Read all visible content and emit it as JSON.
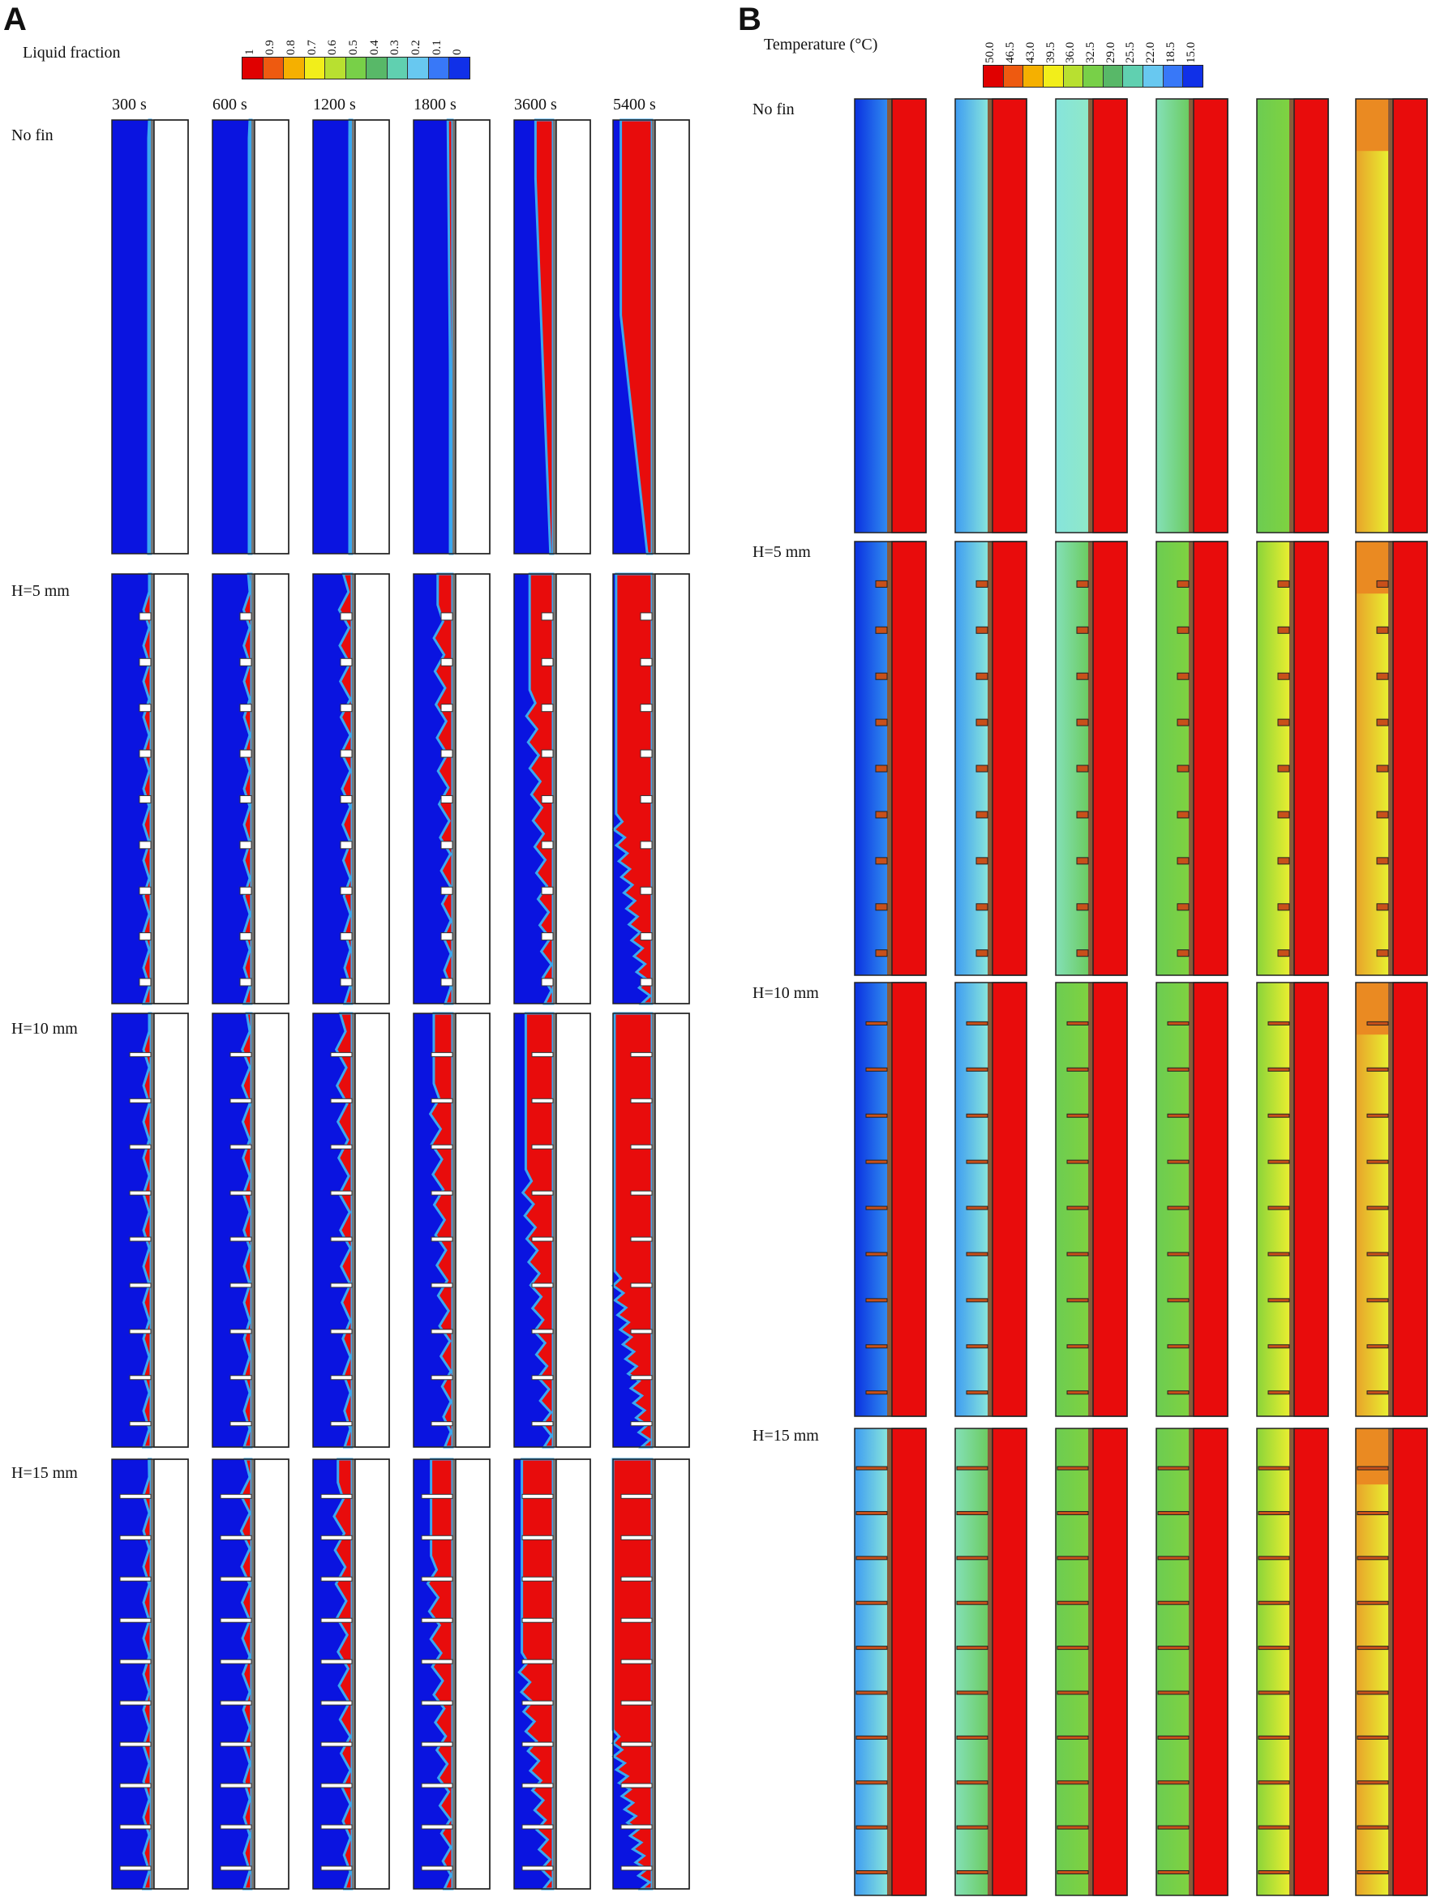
{
  "panel_a": {
    "letter": "A",
    "colorbar": {
      "title": "Liquid fraction",
      "ticks": [
        "1",
        "0.9",
        "0.8",
        "0.7",
        "0.6",
        "0.5",
        "0.4",
        "0.3",
        "0.2",
        "0.1",
        "0"
      ],
      "colors": [
        "#e00000",
        "#ee5a10",
        "#f5b000",
        "#f2ee1a",
        "#b8e030",
        "#78d048",
        "#58b868",
        "#60d0b0",
        "#68c8f0",
        "#3878f8",
        "#1030e8"
      ]
    },
    "time_labels": [
      "300 s",
      "600 s",
      "1200 s",
      "1800 s",
      "3600 s",
      "5400 s"
    ],
    "row_labels": [
      "No fin",
      "H=5 mm",
      "H=10 mm",
      "H=15 mm"
    ]
  },
  "panel_b": {
    "letter": "B",
    "colorbar": {
      "title": "Temperature (°C)",
      "ticks": [
        "50.0",
        "46.5",
        "43.0",
        "39.5",
        "36.0",
        "32.5",
        "29.0",
        "25.5",
        "22.0",
        "18.5",
        "15.0"
      ],
      "colors": [
        "#e00000",
        "#ee5a10",
        "#f5b000",
        "#f2ee1a",
        "#b8e030",
        "#78d048",
        "#58b868",
        "#60d0b0",
        "#68c8f0",
        "#3878f8",
        "#1030e8"
      ]
    },
    "row_labels": [
      "No fin",
      "H=5 mm",
      "H=10 mm",
      "H=15 mm"
    ]
  },
  "field_colors": {
    "solid": "#0a14e0",
    "liquid": "#e80c0c",
    "interface": "#3aa8f0",
    "mid_green": "#6ccc52",
    "light_cyan": "#86e4dc",
    "light_blue": "#3e9cf2",
    "yellow": "#e8ee30",
    "orange": "#ea8a22",
    "fin": "#ffffff",
    "wall": "#e80c0c"
  },
  "fields": {
    "a_fraction": [
      [
        0.0,
        0.02,
        0.06,
        0.12,
        0.45,
        0.8
      ],
      [
        0.03,
        0.08,
        0.22,
        0.38,
        0.6,
        0.92
      ],
      [
        0.04,
        0.12,
        0.3,
        0.48,
        0.7,
        0.96
      ],
      [
        0.05,
        0.16,
        0.36,
        0.55,
        0.8,
        1.0
      ]
    ],
    "b_level": [
      [
        "blue",
        "lightblue",
        "cyan",
        "cyan-green",
        "green",
        "orange"
      ],
      [
        "blue",
        "lightblue",
        "cyan-green",
        "green",
        "green-yellow",
        "orange"
      ],
      [
        "blue",
        "lightblue",
        "green",
        "green",
        "green-yellow",
        "orange"
      ],
      [
        "lightblue",
        "cyan-green",
        "green",
        "green",
        "green-yellow",
        "orange"
      ]
    ]
  }
}
